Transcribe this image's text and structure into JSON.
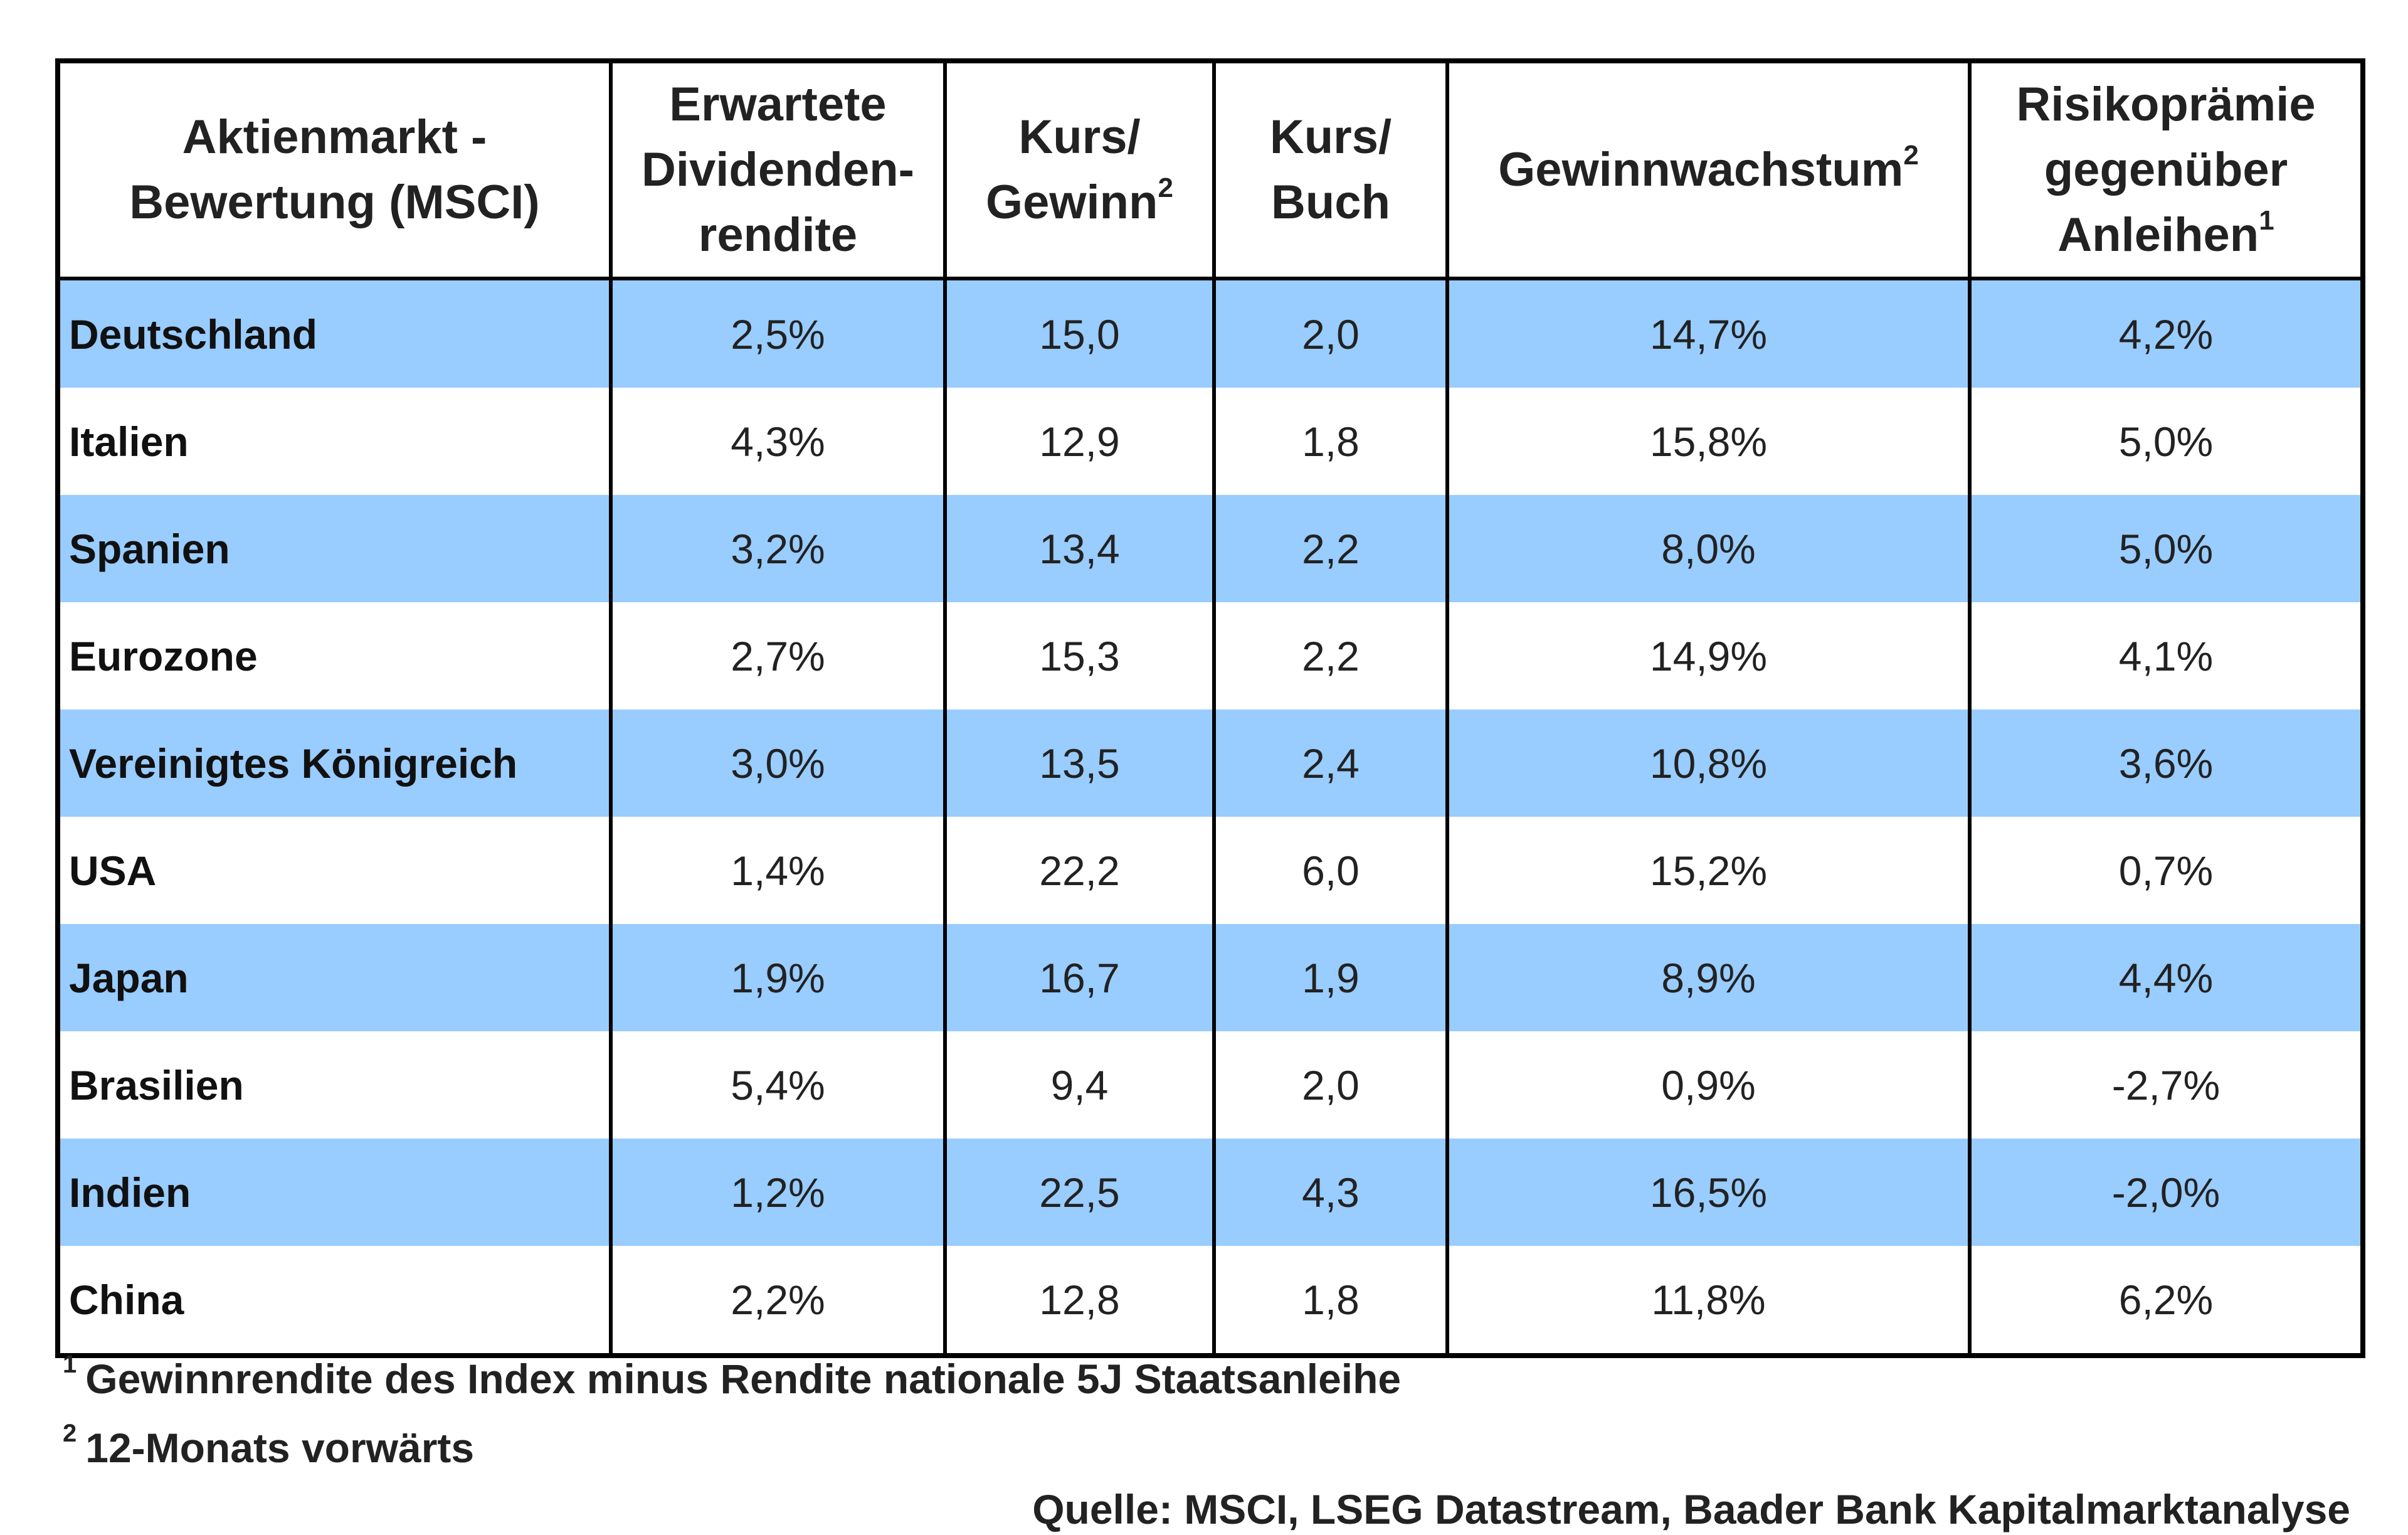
{
  "table": {
    "headers": [
      {
        "lines": [
          "Aktienmarkt -",
          "Bewertung (MSCI)"
        ],
        "sup": ""
      },
      {
        "lines": [
          "Erwartete",
          "Dividenden-",
          "rendite"
        ],
        "sup": ""
      },
      {
        "lines": [
          "Kurs/",
          "Gewinn"
        ],
        "sup": "2"
      },
      {
        "lines": [
          "Kurs/",
          "Buch"
        ],
        "sup": ""
      },
      {
        "lines": [
          "Gewinnwachstum"
        ],
        "sup": "2"
      },
      {
        "lines": [
          "Risikoprämie",
          "gegenüber",
          "Anleihen"
        ],
        "sup": "1"
      }
    ],
    "rows": [
      {
        "market": "Deutschland",
        "dividend_yield": "2,5%",
        "pe": "15,0",
        "pb": "2,0",
        "earnings_growth": "14,7%",
        "risk_premium": "4,2%"
      },
      {
        "market": "Italien",
        "dividend_yield": "4,3%",
        "pe": "12,9",
        "pb": "1,8",
        "earnings_growth": "15,8%",
        "risk_premium": "5,0%"
      },
      {
        "market": "Spanien",
        "dividend_yield": "3,2%",
        "pe": "13,4",
        "pb": "2,2",
        "earnings_growth": "8,0%",
        "risk_premium": "5,0%"
      },
      {
        "market": "Eurozone",
        "dividend_yield": "2,7%",
        "pe": "15,3",
        "pb": "2,2",
        "earnings_growth": "14,9%",
        "risk_premium": "4,1%"
      },
      {
        "market": "Vereinigtes Königreich",
        "dividend_yield": "3,0%",
        "pe": "13,5",
        "pb": "2,4",
        "earnings_growth": "10,8%",
        "risk_premium": "3,6%"
      },
      {
        "market": "USA",
        "dividend_yield": "1,4%",
        "pe": "22,2",
        "pb": "6,0",
        "earnings_growth": "15,2%",
        "risk_premium": "0,7%"
      },
      {
        "market": "Japan",
        "dividend_yield": "1,9%",
        "pe": "16,7",
        "pb": "1,9",
        "earnings_growth": "8,9%",
        "risk_premium": "4,4%"
      },
      {
        "market": "Brasilien",
        "dividend_yield": "5,4%",
        "pe": "9,4",
        "pb": "2,0",
        "earnings_growth": "0,9%",
        "risk_premium": "-2,7%"
      },
      {
        "market": "Indien",
        "dividend_yield": "1,2%",
        "pe": "22,5",
        "pb": "4,3",
        "earnings_growth": "16,5%",
        "risk_premium": "-2,0%"
      },
      {
        "market": "China",
        "dividend_yield": "2,2%",
        "pe": "12,8",
        "pb": "1,8",
        "earnings_growth": "11,8%",
        "risk_premium": "6,2%"
      }
    ]
  },
  "footnotes": [
    {
      "marker": "1",
      "text": "Gewinnrendite des Index minus Rendite nationale 5J Staatsanleihe"
    },
    {
      "marker": "2",
      "text": "12-Monats vorwärts"
    }
  ],
  "source": "Quelle: MSCI, LSEG Datastream, Baader Bank Kapitalmarktanalyse",
  "colors": {
    "band": "#99ccff",
    "plain": "#ffffff",
    "border": "#000000"
  }
}
